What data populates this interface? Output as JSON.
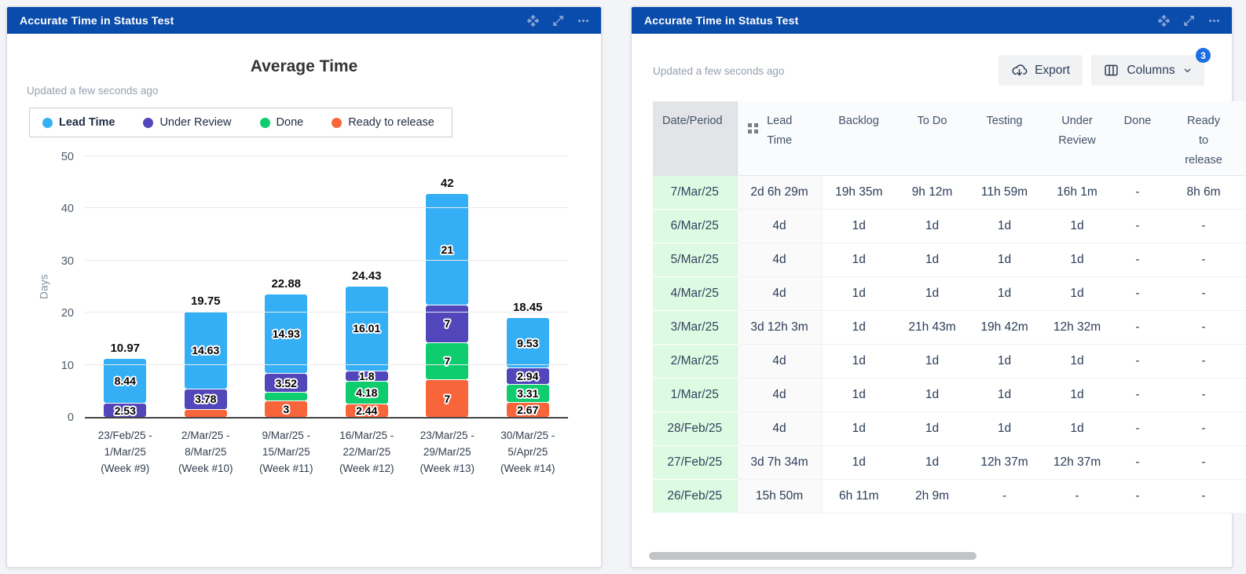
{
  "left_panel": {
    "title": "Accurate Time in Status Test",
    "updated": "Updated a few seconds ago"
  },
  "right_panel": {
    "title": "Accurate Time in Status Test",
    "updated": "Updated a few seconds ago",
    "export_label": "Export",
    "columns_label": "Columns",
    "columns_badge": "3"
  },
  "chart_data": {
    "type": "bar",
    "stacked": true,
    "title": "Average Time",
    "ylabel": "Days",
    "ylim": [
      0,
      50
    ],
    "yticks": [
      0,
      10,
      20,
      30,
      40,
      50
    ],
    "grid": true,
    "legend_position": "top-left",
    "legend": [
      {
        "name": "Lead Time",
        "color": "#34aff5",
        "bold": true
      },
      {
        "name": "Under Review",
        "color": "#5146ba"
      },
      {
        "name": "Done",
        "color": "#0fcd6f"
      },
      {
        "name": "Ready to release",
        "color": "#f8653a"
      }
    ],
    "categories": [
      [
        "23/Feb/25 -",
        "1/Mar/25",
        "(Week #9)"
      ],
      [
        "2/Mar/25 -",
        "8/Mar/25",
        "(Week #10)"
      ],
      [
        "9/Mar/25 -",
        "15/Mar/25",
        "(Week #11)"
      ],
      [
        "16/Mar/25 -",
        "22/Mar/25",
        "(Week #12)"
      ],
      [
        "23/Mar/25 -",
        "29/Mar/25",
        "(Week #13)"
      ],
      [
        "30/Mar/25 -",
        "5/Apr/25",
        "(Week #14)"
      ]
    ],
    "bars": [
      {
        "total": "10.97",
        "segments": [
          {
            "series": "Under Review",
            "value": 2.53,
            "label": "2.53"
          },
          {
            "series": "Lead Time",
            "value": 8.44,
            "label": "8.44"
          }
        ]
      },
      {
        "total": "19.75",
        "segments": [
          {
            "series": "Ready to release",
            "value": 1.34,
            "label": ""
          },
          {
            "series": "Under Review",
            "value": 3.78,
            "label": "3.78"
          },
          {
            "series": "Lead Time",
            "value": 14.63,
            "label": "14.63"
          }
        ]
      },
      {
        "total": "22.88",
        "segments": [
          {
            "series": "Ready to release",
            "value": 3,
            "label": "3"
          },
          {
            "series": "Done",
            "value": 1.43,
            "label": ""
          },
          {
            "series": "Under Review",
            "value": 3.52,
            "label": "3.52"
          },
          {
            "series": "Lead Time",
            "value": 14.93,
            "label": "14.93"
          }
        ]
      },
      {
        "total": "24.43",
        "segments": [
          {
            "series": "Ready to release",
            "value": 2.44,
            "label": "2.44"
          },
          {
            "series": "Done",
            "value": 4.18,
            "label": "4.18"
          },
          {
            "series": "Under Review",
            "value": 1.8,
            "label": "1.8"
          },
          {
            "series": "Lead Time",
            "value": 16.01,
            "label": "16.01"
          }
        ]
      },
      {
        "total": "42",
        "segments": [
          {
            "series": "Ready to release",
            "value": 7,
            "label": "7"
          },
          {
            "series": "Done",
            "value": 7,
            "label": "7"
          },
          {
            "series": "Under Review",
            "value": 7,
            "label": "7"
          },
          {
            "series": "Lead Time",
            "value": 21,
            "label": "21"
          }
        ]
      },
      {
        "total": "18.45",
        "segments": [
          {
            "series": "Ready to release",
            "value": 2.67,
            "label": "2.67"
          },
          {
            "series": "Done",
            "value": 3.31,
            "label": "3.31"
          },
          {
            "series": "Under Review",
            "value": 2.94,
            "label": "2.94"
          },
          {
            "series": "Lead Time",
            "value": 9.53,
            "label": "9.53"
          }
        ]
      }
    ]
  },
  "table": {
    "columns": [
      "Date/Period",
      "Lead Time",
      "Backlog",
      "To Do",
      "Testing",
      "Under Review",
      "Done",
      "Ready to release"
    ],
    "rows": [
      [
        "7/Mar/25",
        "2d 6h 29m",
        "19h 35m",
        "9h 12m",
        "11h 59m",
        "16h 1m",
        "-",
        "8h 6m"
      ],
      [
        "6/Mar/25",
        "4d",
        "1d",
        "1d",
        "1d",
        "1d",
        "-",
        "-"
      ],
      [
        "5/Mar/25",
        "4d",
        "1d",
        "1d",
        "1d",
        "1d",
        "-",
        "-"
      ],
      [
        "4/Mar/25",
        "4d",
        "1d",
        "1d",
        "1d",
        "1d",
        "-",
        "-"
      ],
      [
        "3/Mar/25",
        "3d 12h 3m",
        "1d",
        "21h 43m",
        "19h 42m",
        "12h 32m",
        "-",
        "-"
      ],
      [
        "2/Mar/25",
        "4d",
        "1d",
        "1d",
        "1d",
        "1d",
        "-",
        "-"
      ],
      [
        "1/Mar/25",
        "4d",
        "1d",
        "1d",
        "1d",
        "1d",
        "-",
        "-"
      ],
      [
        "28/Feb/25",
        "4d",
        "1d",
        "1d",
        "1d",
        "1d",
        "-",
        "-"
      ],
      [
        "27/Feb/25",
        "3d 7h 34m",
        "1d",
        "1d",
        "12h 37m",
        "12h 37m",
        "-",
        "-"
      ],
      [
        "26/Feb/25",
        "15h 50m",
        "6h 11m",
        "2h 9m",
        "-",
        "-",
        "-",
        "-"
      ]
    ]
  }
}
